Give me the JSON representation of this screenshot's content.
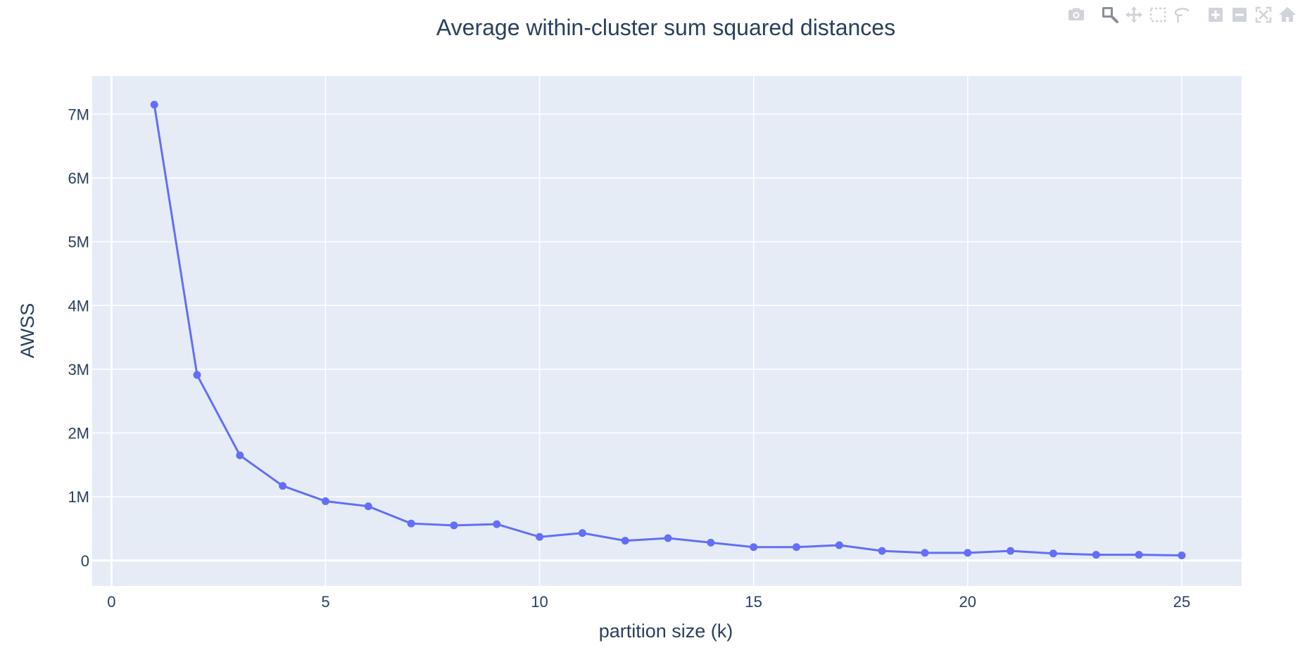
{
  "modebar": {
    "buttons": [
      {
        "icon": "camera-icon",
        "name": "download-plot-button"
      },
      {
        "icon": "zoom-icon",
        "name": "zoom-button"
      },
      {
        "icon": "pan-icon",
        "name": "pan-button"
      },
      {
        "icon": "box-select-icon",
        "name": "box-select-button"
      },
      {
        "icon": "lasso-select-icon",
        "name": "lasso-select-button"
      },
      {
        "icon": "zoom-in-icon",
        "name": "zoom-in-button"
      },
      {
        "icon": "zoom-out-icon",
        "name": "zoom-out-button"
      },
      {
        "icon": "autoscale-icon",
        "name": "autoscale-button"
      },
      {
        "icon": "home-icon",
        "name": "reset-axes-button"
      }
    ]
  },
  "colors": {
    "plot_bg": "#e5ecf6",
    "grid": "#ffffff",
    "line": "#636efa",
    "text": "#2a3f5f",
    "modebar_icon": "#d0d3d9",
    "modebar_icon_active": "#8a8f99"
  },
  "chart_data": {
    "type": "line",
    "title": "Average within-cluster sum squared distances",
    "xlabel": "partition size (k)",
    "ylabel": "AWSS",
    "xlim": [
      -0.45,
      26.4
    ],
    "ylim": [
      -400000,
      7600000
    ],
    "x_ticks": [
      0,
      5,
      10,
      15,
      20,
      25
    ],
    "x_tick_labels": [
      "0",
      "5",
      "10",
      "15",
      "20",
      "25"
    ],
    "y_ticks": [
      0,
      1000000,
      2000000,
      3000000,
      4000000,
      5000000,
      6000000,
      7000000
    ],
    "y_tick_labels": [
      "0",
      "1M",
      "2M",
      "3M",
      "4M",
      "5M",
      "6M",
      "7M"
    ],
    "grid": true,
    "series": [
      {
        "name": "AWSS",
        "mode": "lines+markers",
        "x": [
          1,
          2,
          3,
          4,
          5,
          6,
          7,
          8,
          9,
          10,
          11,
          12,
          13,
          14,
          15,
          16,
          17,
          18,
          19,
          20,
          21,
          22,
          23,
          24,
          25
        ],
        "y": [
          7150000,
          2910000,
          1650000,
          1170000,
          930000,
          850000,
          580000,
          550000,
          570000,
          370000,
          430000,
          310000,
          350000,
          280000,
          210000,
          210000,
          240000,
          150000,
          120000,
          120000,
          150000,
          110000,
          90000,
          90000,
          80000
        ]
      }
    ]
  }
}
